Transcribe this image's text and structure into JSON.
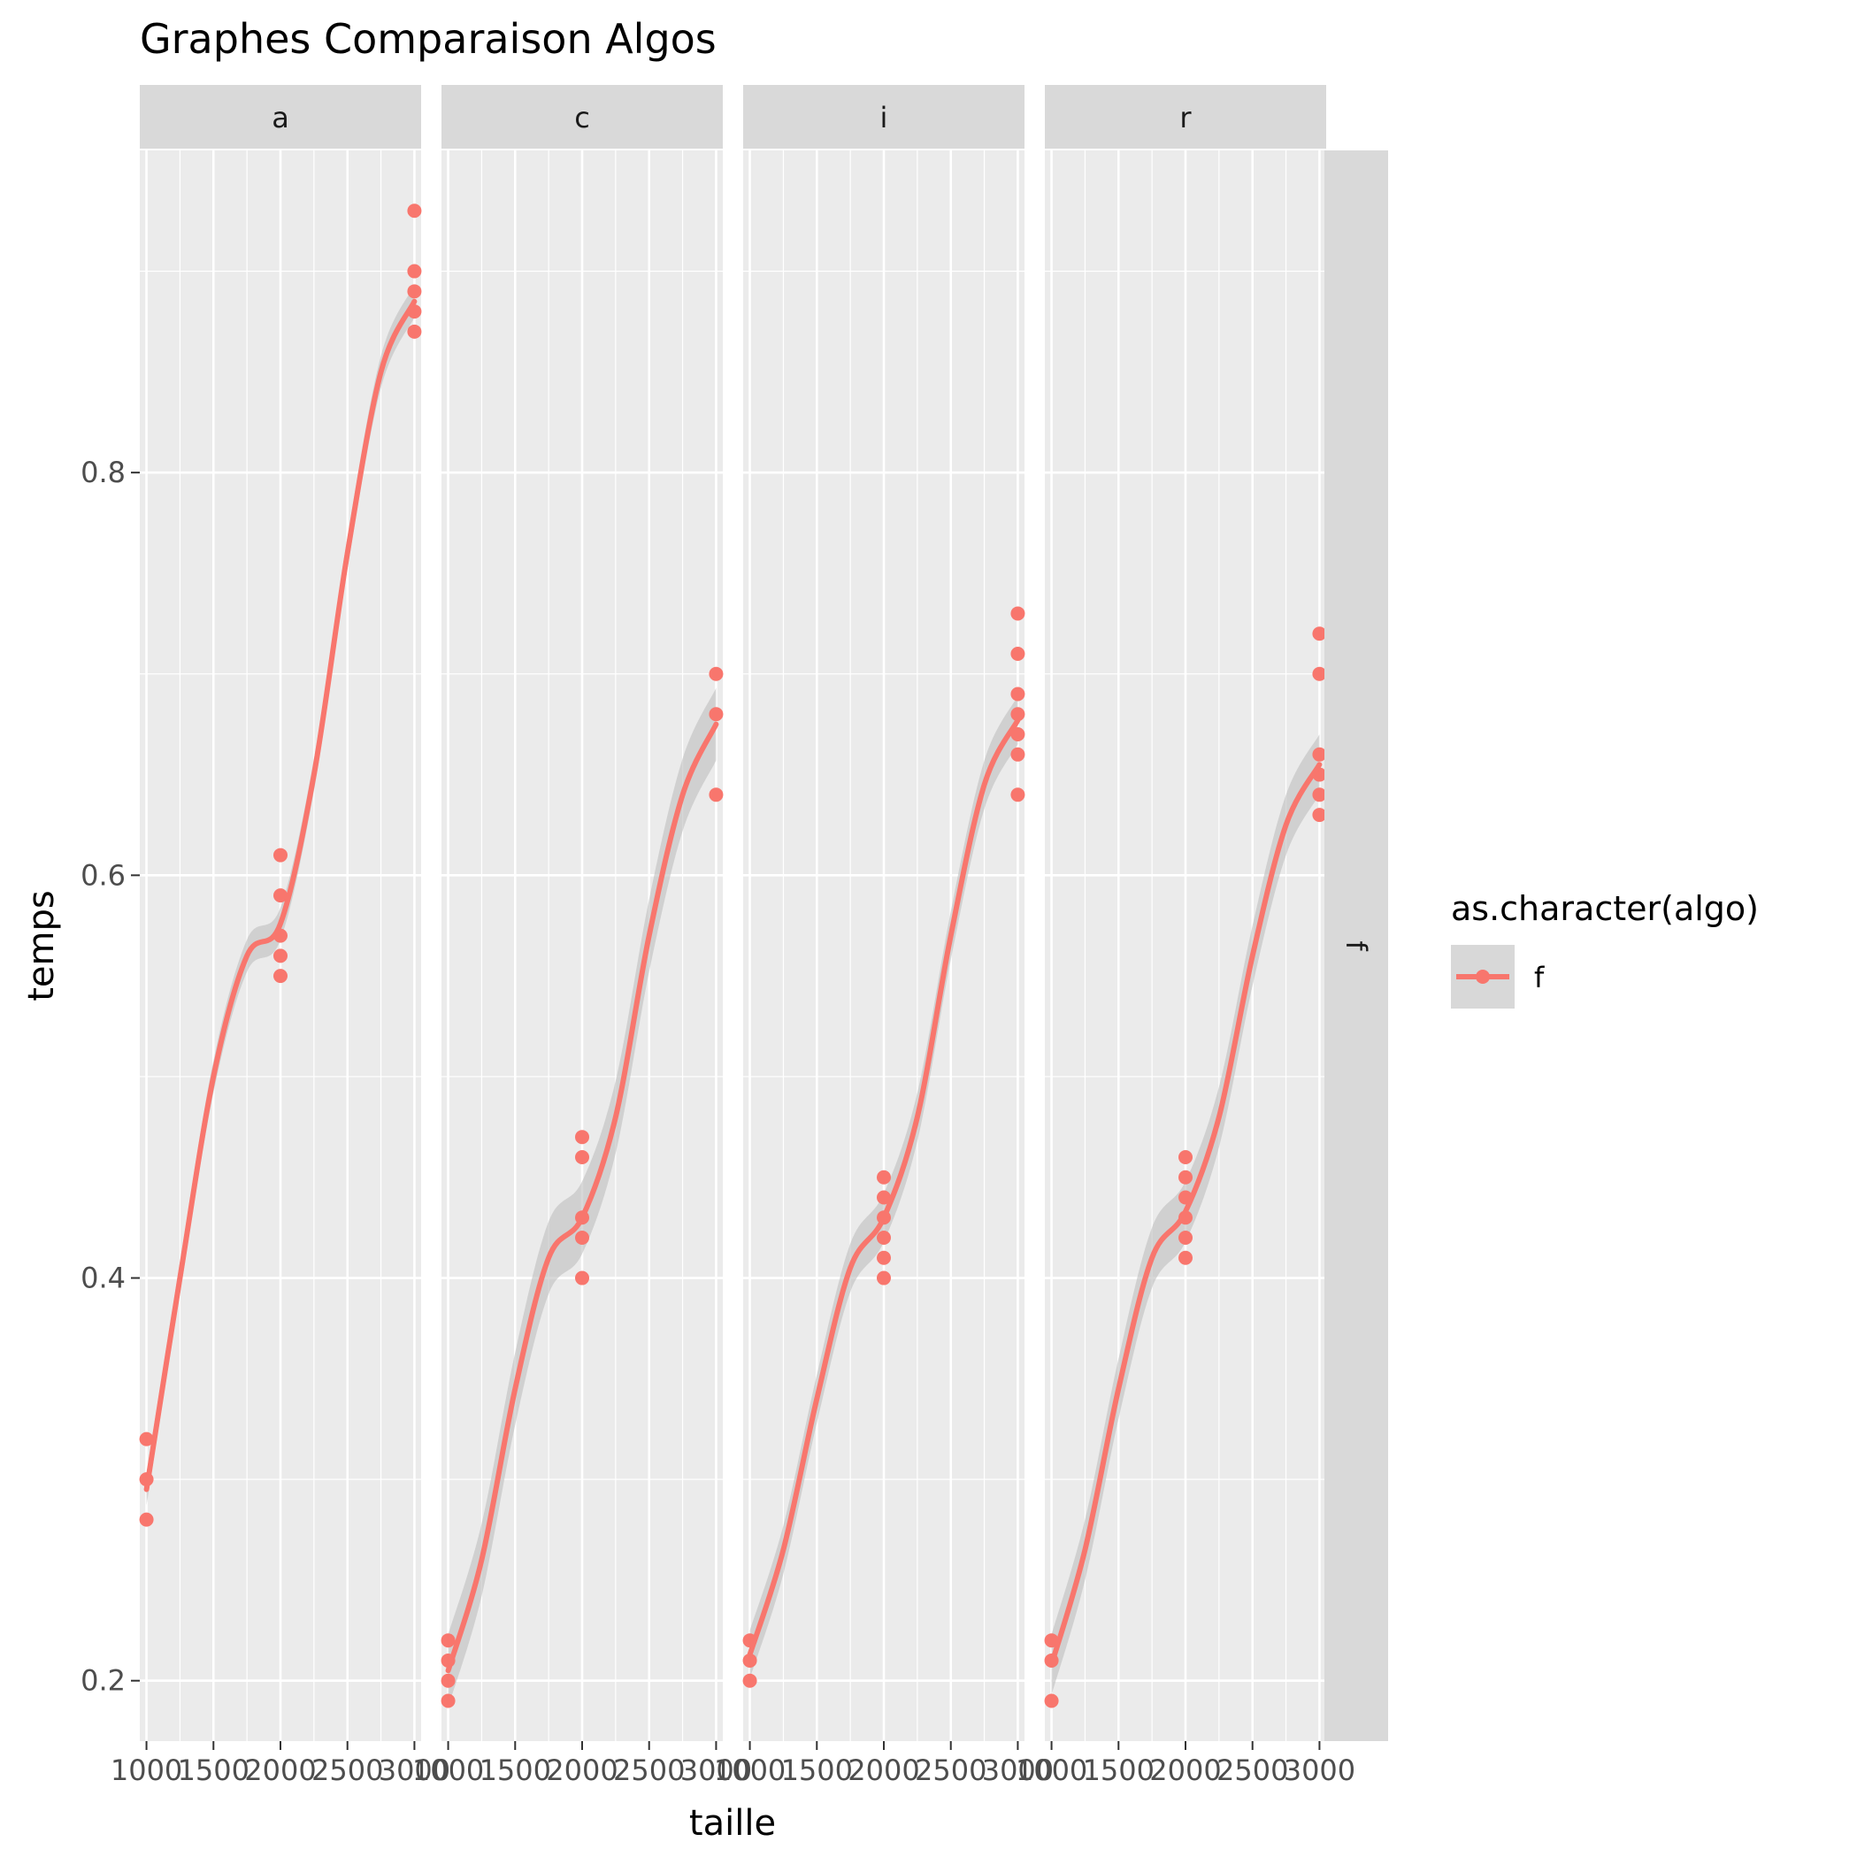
{
  "chart_data": {
    "type": "scatter",
    "title": "Graphes Comparaison Algos",
    "xlabel": "taille",
    "ylabel": "temps",
    "x_ticks": [
      1000,
      1500,
      2000,
      2500,
      3000
    ],
    "x_tick_labels": [
      "1000",
      "1500",
      "2000",
      "2500",
      "3000"
    ],
    "y_ticks": [
      0.2,
      0.4,
      0.6,
      0.8
    ],
    "y_tick_labels": [
      "0.2",
      "0.4",
      "0.6",
      "0.8"
    ],
    "xlim": [
      950,
      3050
    ],
    "ylim": [
      0.17,
      0.96
    ],
    "grid": true,
    "facet_column_labels": [
      "a",
      "c",
      "i",
      "r"
    ],
    "facet_row_label": "f",
    "legend": {
      "title": "as.character(algo)",
      "entries": [
        "f"
      ],
      "placement": "right"
    },
    "colors": {
      "series": "#F8766D",
      "ribbon": "#BEBEBE",
      "panel_bg": "#EBEBEB",
      "strip_bg": "#D9D9D9",
      "grid": "#FFFFFF"
    },
    "panels": [
      {
        "facet": "a",
        "points": [
          [
            1000,
            0.32
          ],
          [
            1000,
            0.3
          ],
          [
            1000,
            0.28
          ],
          [
            2000,
            0.61
          ],
          [
            2000,
            0.59
          ],
          [
            2000,
            0.57
          ],
          [
            2000,
            0.56
          ],
          [
            2000,
            0.55
          ],
          [
            3000,
            0.93
          ],
          [
            3000,
            0.9
          ],
          [
            3000,
            0.89
          ],
          [
            3000,
            0.88
          ],
          [
            3000,
            0.87
          ]
        ],
        "smooth": [
          [
            1000,
            0.295
          ],
          [
            1250,
            0.4
          ],
          [
            1500,
            0.5
          ],
          [
            1750,
            0.56
          ],
          [
            2000,
            0.576
          ],
          [
            2250,
            0.65
          ],
          [
            2500,
            0.76
          ],
          [
            2750,
            0.85
          ],
          [
            3000,
            0.885
          ]
        ],
        "se": 0.008
      },
      {
        "facet": "c",
        "points": [
          [
            1000,
            0.22
          ],
          [
            1000,
            0.21
          ],
          [
            1000,
            0.2
          ],
          [
            1000,
            0.19
          ],
          [
            2000,
            0.47
          ],
          [
            2000,
            0.46
          ],
          [
            2000,
            0.43
          ],
          [
            2000,
            0.42
          ],
          [
            2000,
            0.4
          ],
          [
            3000,
            0.7
          ],
          [
            3000,
            0.68
          ],
          [
            3000,
            0.64
          ]
        ],
        "smooth": [
          [
            1000,
            0.205
          ],
          [
            1250,
            0.26
          ],
          [
            1500,
            0.345
          ],
          [
            1750,
            0.41
          ],
          [
            2000,
            0.43
          ],
          [
            2250,
            0.48
          ],
          [
            2500,
            0.57
          ],
          [
            2750,
            0.64
          ],
          [
            3000,
            0.675
          ]
        ],
        "se": 0.018
      },
      {
        "facet": "i",
        "points": [
          [
            1000,
            0.22
          ],
          [
            1000,
            0.21
          ],
          [
            1000,
            0.2
          ],
          [
            2000,
            0.45
          ],
          [
            2000,
            0.44
          ],
          [
            2000,
            0.43
          ],
          [
            2000,
            0.42
          ],
          [
            2000,
            0.41
          ],
          [
            2000,
            0.4
          ],
          [
            3000,
            0.73
          ],
          [
            3000,
            0.71
          ],
          [
            3000,
            0.69
          ],
          [
            3000,
            0.68
          ],
          [
            3000,
            0.67
          ],
          [
            3000,
            0.66
          ],
          [
            3000,
            0.64
          ]
        ],
        "smooth": [
          [
            1000,
            0.213
          ],
          [
            1250,
            0.265
          ],
          [
            1500,
            0.34
          ],
          [
            1750,
            0.405
          ],
          [
            2000,
            0.43
          ],
          [
            2250,
            0.48
          ],
          [
            2500,
            0.57
          ],
          [
            2750,
            0.645
          ],
          [
            3000,
            0.677
          ]
        ],
        "se": 0.012
      },
      {
        "facet": "r",
        "points": [
          [
            1000,
            0.22
          ],
          [
            1000,
            0.21
          ],
          [
            1000,
            0.19
          ],
          [
            2000,
            0.46
          ],
          [
            2000,
            0.45
          ],
          [
            2000,
            0.44
          ],
          [
            2000,
            0.43
          ],
          [
            2000,
            0.42
          ],
          [
            2000,
            0.41
          ],
          [
            3000,
            0.72
          ],
          [
            3000,
            0.7
          ],
          [
            3000,
            0.66
          ],
          [
            3000,
            0.65
          ],
          [
            3000,
            0.64
          ],
          [
            3000,
            0.63
          ]
        ],
        "smooth": [
          [
            1000,
            0.208
          ],
          [
            1250,
            0.265
          ],
          [
            1500,
            0.345
          ],
          [
            1750,
            0.41
          ],
          [
            2000,
            0.433
          ],
          [
            2250,
            0.48
          ],
          [
            2500,
            0.56
          ],
          [
            2750,
            0.625
          ],
          [
            3000,
            0.655
          ]
        ],
        "se": 0.015
      }
    ]
  }
}
